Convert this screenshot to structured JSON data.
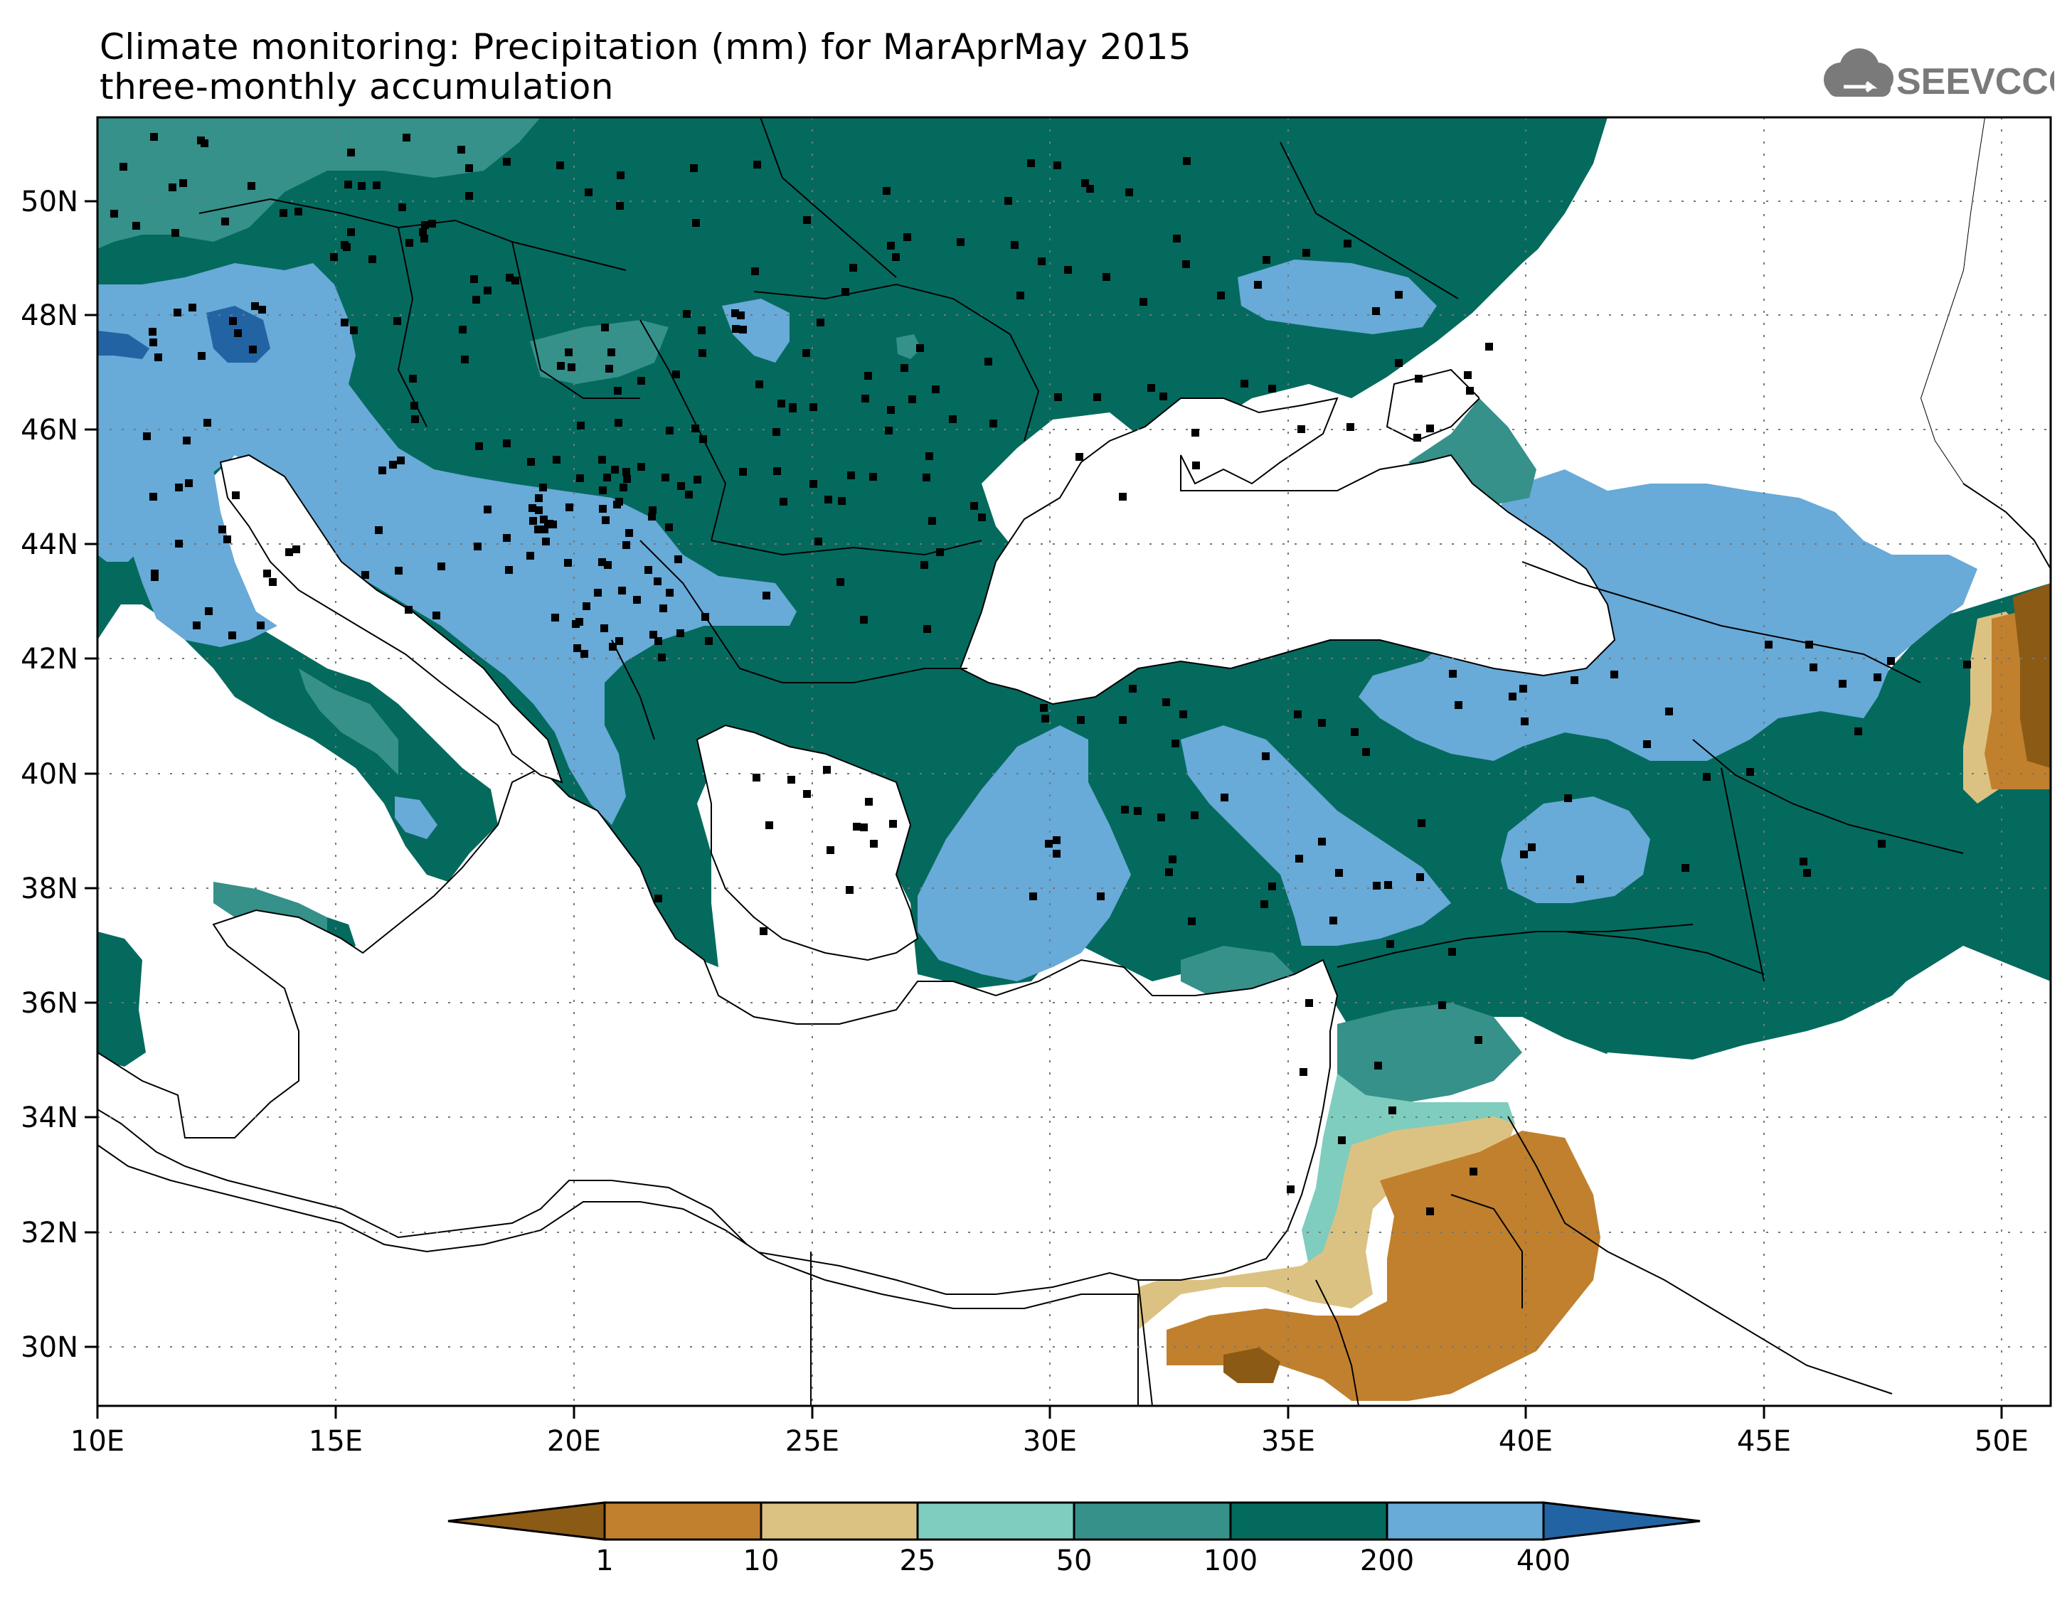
{
  "header": {
    "title_line1": "Climate monitoring: Precipitation (mm) for MarAprMay 2015",
    "title_line2": "three-monthly accumulation",
    "logo_text": "SEEVCCC"
  },
  "map": {
    "lon_labels": [
      "10E",
      "15E",
      "20E",
      "25E",
      "30E",
      "35E",
      "40E",
      "45E",
      "50E"
    ],
    "lat_labels": [
      "50N",
      "48N",
      "46N",
      "44N",
      "42N",
      "40N",
      "38N",
      "36N",
      "34N",
      "32N",
      "30N"
    ]
  },
  "colorbar": {
    "thresholds": [
      "1",
      "10",
      "25",
      "50",
      "100",
      "200",
      "400"
    ],
    "colors": [
      "#8b5a14",
      "#c0802e",
      "#dcc282",
      "#7fcdbe",
      "#35918a",
      "#046a5e",
      "#68aad8",
      "#2264a3"
    ]
  },
  "palette": {
    "ocean": "#ffffff",
    "coast": "#000000"
  }
}
